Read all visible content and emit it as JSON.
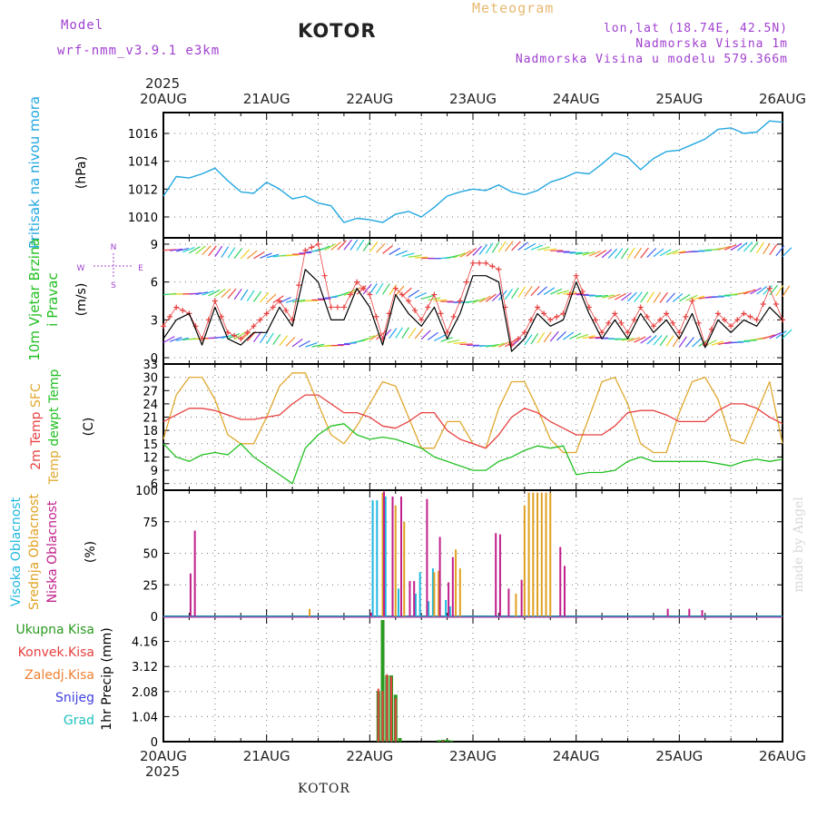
{
  "header": {
    "model_label": "Model",
    "model_name": "wrf-nmm_v3.9.1  e3km",
    "station": "KOTOR",
    "meteogram": "Meteogram",
    "lonlat": "lon,lat (18.74E, 42.5N)",
    "elevation": "Nadmorska Visina 1m",
    "model_elevation": "Nadmorska Visina u modelu 579.366m"
  },
  "footer": {
    "station": "KOTOR",
    "credit": "made by Angel"
  },
  "colors": {
    "pressure": "#22a7e0",
    "wind_line": "#000000",
    "gust": "#e84040",
    "temp": "#e84040",
    "sfc_temp": "#e0a830",
    "dewpt": "#22c022",
    "high_cloud": "#20b8e0",
    "mid_cloud": "#e0a020",
    "low_cloud": "#c0208c",
    "total_precip": "#2a9a20",
    "conv_precip": "#e84040",
    "grid_precip": "#f08030",
    "snow": "#4040e0",
    "graupel": "#20c0c0",
    "header_purple": "#a040d0"
  },
  "chart_data": [
    {
      "type": "line",
      "title": "Pritisak na nivou mora",
      "ylabel": "(hPa)",
      "ylim": [
        1008.5,
        1017.5
      ],
      "yticks": [
        "1010",
        "1012",
        "1014",
        "1016"
      ],
      "x_start_day": 20,
      "year": "2025",
      "xticks": [
        "20AUG",
        "21AUG",
        "22AUG",
        "23AUG",
        "24AUG",
        "25AUG",
        "26AUG"
      ],
      "x_hours": [
        0,
        3,
        6,
        9,
        12,
        15,
        18,
        21,
        24,
        27,
        30,
        33,
        36,
        39,
        42,
        45,
        48,
        51,
        54,
        57,
        60,
        63,
        66,
        69,
        72,
        75,
        78,
        81,
        84,
        87,
        90,
        93,
        96,
        99,
        102,
        105,
        108,
        111,
        114,
        117,
        120,
        123,
        126,
        129,
        132,
        135,
        138,
        141,
        144
      ],
      "values": [
        1011.5,
        1012.9,
        1012.8,
        1013.1,
        1013.5,
        1012.6,
        1011.8,
        1011.7,
        1012.5,
        1012.0,
        1011.3,
        1011.5,
        1011.0,
        1010.8,
        1009.6,
        1009.9,
        1009.8,
        1009.6,
        1010.2,
        1010.4,
        1010.0,
        1010.7,
        1011.5,
        1011.8,
        1012.0,
        1011.9,
        1012.3,
        1011.8,
        1011.6,
        1011.9,
        1012.5,
        1012.8,
        1013.2,
        1013.1,
        1013.8,
        1014.6,
        1014.3,
        1013.4,
        1014.2,
        1014.7,
        1014.8,
        1015.2,
        1015.6,
        1016.3,
        1016.4,
        1016.0,
        1016.1,
        1016.9,
        1016.8
      ]
    },
    {
      "type": "line",
      "title": "10m Vjetar Brzina i Pravac",
      "ylabel": "(m/s)",
      "ylim": [
        -0.5,
        9.5
      ],
      "yticks": [
        "0",
        "3",
        "6",
        "9"
      ],
      "compass": {
        "n": "N",
        "s": "S",
        "e": "E",
        "w": "W"
      },
      "x_hours": [
        0,
        3,
        6,
        9,
        12,
        15,
        18,
        21,
        24,
        27,
        30,
        33,
        36,
        39,
        42,
        45,
        48,
        51,
        54,
        57,
        60,
        63,
        66,
        69,
        72,
        75,
        78,
        81,
        84,
        87,
        90,
        93,
        96,
        99,
        102,
        105,
        108,
        111,
        114,
        117,
        120,
        123,
        126,
        129,
        132,
        135,
        138,
        141,
        144
      ],
      "series": [
        {
          "name": "Wind speed",
          "values": [
            1.5,
            3.0,
            3.5,
            1.0,
            4.0,
            1.5,
            1.0,
            2.0,
            2.0,
            4.0,
            2.5,
            7.0,
            6.0,
            3.0,
            3.0,
            5.5,
            4.0,
            1.0,
            5.0,
            3.5,
            2.5,
            4.0,
            1.5,
            3.5,
            6.5,
            6.5,
            6.0,
            0.5,
            1.5,
            3.5,
            2.5,
            3.0,
            6.0,
            3.5,
            1.5,
            3.0,
            1.5,
            3.5,
            2.0,
            3.0,
            1.5,
            3.5,
            0.8,
            3.0,
            2.0,
            3.0,
            2.5,
            4.0,
            3.0
          ]
        },
        {
          "name": "Gust",
          "values": [
            2.5,
            4.0,
            3.5,
            1.5,
            4.5,
            2.0,
            1.5,
            2.5,
            3.5,
            4.5,
            3.0,
            8.5,
            9.0,
            4.0,
            4.0,
            6.0,
            5.0,
            1.5,
            5.5,
            4.5,
            3.0,
            5.0,
            2.0,
            4.5,
            7.5,
            7.5,
            7.0,
            1.0,
            2.0,
            4.0,
            3.0,
            3.5,
            6.5,
            4.0,
            2.0,
            3.5,
            2.0,
            4.0,
            2.5,
            3.5,
            2.0,
            4.5,
            1.0,
            3.5,
            2.5,
            3.5,
            3.0,
            5.5,
            3.0
          ]
        }
      ]
    },
    {
      "type": "line",
      "title": "2m Temp / SFC Temp / dewpt Temp",
      "ylabel": "(C)",
      "ylim": [
        4.5,
        33
      ],
      "yticks": [
        "6",
        "9",
        "12",
        "15",
        "18",
        "21",
        "24",
        "27",
        "30",
        "33"
      ],
      "x_hours": [
        0,
        3,
        6,
        9,
        12,
        15,
        18,
        21,
        24,
        27,
        30,
        33,
        36,
        39,
        42,
        45,
        48,
        51,
        54,
        57,
        60,
        63,
        66,
        69,
        72,
        75,
        78,
        81,
        84,
        87,
        90,
        93,
        96,
        99,
        102,
        105,
        108,
        111,
        114,
        117,
        120,
        123,
        126,
        129,
        132,
        135,
        138,
        141,
        144
      ],
      "series": [
        {
          "name": "2m Temp",
          "values": [
            20,
            21.5,
            23,
            23,
            22.5,
            21.5,
            20.5,
            20.5,
            21,
            21.5,
            24,
            26,
            26,
            24,
            22,
            22,
            21,
            19,
            18.5,
            20,
            22,
            22,
            18,
            16,
            15,
            14,
            17,
            21,
            23,
            22,
            20,
            18.5,
            17,
            17,
            17,
            19,
            22,
            22.5,
            22.5,
            21.5,
            20,
            20,
            20,
            22.5,
            24,
            24,
            23,
            21,
            19.5
          ]
        },
        {
          "name": "SFC Temp",
          "values": [
            16,
            26,
            30,
            30,
            25,
            17,
            15,
            15,
            21,
            28,
            31,
            31,
            24,
            17,
            15,
            19,
            24,
            29,
            28,
            21,
            14,
            14,
            20,
            20,
            15,
            14,
            23,
            29,
            29,
            23,
            16,
            13,
            13,
            21,
            29,
            30,
            24,
            15,
            13,
            13,
            22,
            29,
            30,
            25,
            16,
            15,
            22,
            29,
            15
          ]
        },
        {
          "name": "dewpt Temp",
          "values": [
            15,
            12,
            11,
            12.5,
            13,
            12.5,
            15,
            12,
            10,
            8,
            6,
            14,
            17,
            19,
            19.5,
            17,
            16,
            16.5,
            16,
            15,
            14,
            12,
            11,
            10,
            9,
            9,
            11,
            12,
            13.5,
            14.5,
            14,
            14.5,
            8,
            8.5,
            8.5,
            9,
            11,
            12,
            11,
            11,
            11,
            11,
            11,
            10.5,
            10,
            11,
            11.5,
            11,
            11.5
          ]
        }
      ]
    },
    {
      "type": "bar",
      "title": "Visoka / Srednja / Niska Oblacnost",
      "ylabel": "(%)",
      "ylim": [
        0,
        100
      ],
      "yticks": [
        "0",
        "25",
        "50",
        "75",
        "100"
      ],
      "series": [
        {
          "name": "Visoka Oblacnost",
          "points": [
            [
              49,
              92
            ],
            [
              50,
              92
            ],
            [
              52,
              95
            ],
            [
              55,
              22
            ],
            [
              59,
              18
            ],
            [
              60,
              35
            ],
            [
              62,
              12
            ],
            [
              63,
              38
            ],
            [
              66,
              13
            ],
            [
              67,
              8
            ]
          ]
        },
        {
          "name": "Srednja Oblacnost",
          "points": [
            [
              34,
              6
            ],
            [
              51,
              98
            ],
            [
              54,
              88
            ],
            [
              56,
              75
            ],
            [
              63,
              35
            ],
            [
              64,
              36
            ],
            [
              68,
              53
            ],
            [
              69,
              38
            ],
            [
              82,
              18
            ],
            [
              84,
              88
            ],
            [
              85,
              98
            ],
            [
              86,
              98
            ],
            [
              87,
              98
            ],
            [
              88,
              98
            ],
            [
              89,
              98
            ],
            [
              90,
              98
            ]
          ]
        },
        {
          "name": "Niska Oblacnost",
          "points": [
            [
              6,
              34
            ],
            [
              7,
              68
            ],
            [
              48,
              3
            ],
            [
              51,
              99
            ],
            [
              53,
              95
            ],
            [
              55,
              95
            ],
            [
              57,
              28
            ],
            [
              58,
              28
            ],
            [
              61,
              93
            ],
            [
              64,
              63
            ],
            [
              66,
              27
            ],
            [
              67,
              47
            ],
            [
              77,
              66
            ],
            [
              78,
              65
            ],
            [
              80,
              22
            ],
            [
              83,
              29
            ],
            [
              92,
              55
            ],
            [
              93,
              40
            ],
            [
              117,
              6
            ],
            [
              122,
              6
            ],
            [
              125,
              5
            ]
          ]
        }
      ]
    },
    {
      "type": "bar",
      "title": "1hr Precip",
      "ylabel": "1hr Precip (mm)",
      "ylim": [
        0,
        5.2
      ],
      "yticks": [
        "0",
        "1.04",
        "2.08",
        "3.12",
        "4.16"
      ],
      "legend": [
        "Ukupna Kisa",
        "Konvek.Kisa",
        "Zaledj.Kisa",
        "Snijeg",
        "Grad"
      ],
      "series": [
        {
          "name": "Ukupna Kisa",
          "points": [
            [
              50,
              2.1
            ],
            [
              51,
              5.05
            ],
            [
              52,
              2.75
            ],
            [
              53,
              2.75
            ],
            [
              54,
              1.95
            ],
            [
              55,
              0.15
            ],
            [
              64,
              0.06
            ],
            [
              65,
              0.08
            ],
            [
              66,
              0.08
            ],
            [
              67,
              0.05
            ]
          ]
        },
        {
          "name": "Konvek.Kisa",
          "points": [
            [
              50,
              2.2
            ],
            [
              51,
              2.1
            ],
            [
              52,
              2.8
            ],
            [
              53,
              2.7
            ],
            [
              54,
              1.8
            ],
            [
              65,
              0.05
            ]
          ]
        },
        {
          "name": "Zaledj.Kisa",
          "points": []
        },
        {
          "name": "Snijeg",
          "points": []
        },
        {
          "name": "Grad",
          "points": []
        }
      ]
    }
  ]
}
